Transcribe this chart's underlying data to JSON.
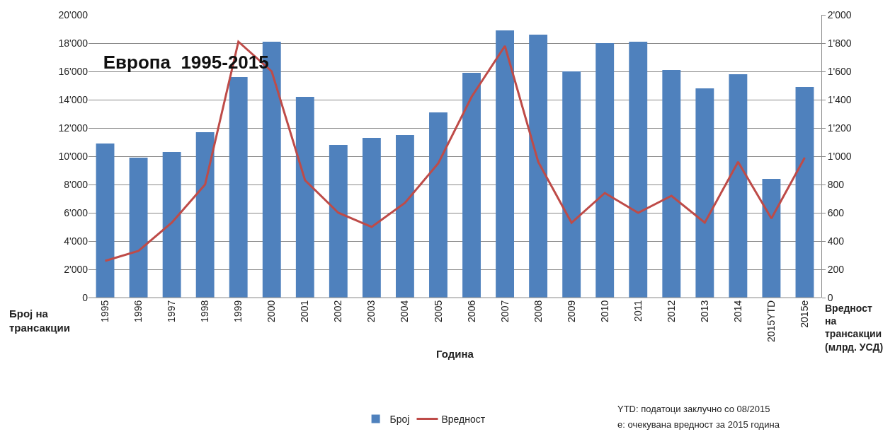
{
  "chart_data": {
    "type": "bar",
    "title": "Европа  1995-2015",
    "xlabel": "Година",
    "ylabel": "Број на трансакции",
    "y2label": "Вредност на трансакции (млрд. УСД)",
    "categories": [
      "1995",
      "1996",
      "1997",
      "1998",
      "1999",
      "2000",
      "2001",
      "2002",
      "2003",
      "2004",
      "2005",
      "2006",
      "2007",
      "2008",
      "2009",
      "2010",
      "2011",
      "2012",
      "2013",
      "2014",
      "2015YTD",
      "2015e"
    ],
    "series": [
      {
        "name": "Број",
        "color": "#4f81bd",
        "values": [
          10900,
          9900,
          10300,
          11700,
          15600,
          18100,
          14200,
          10800,
          11300,
          11500,
          13100,
          15900,
          18900,
          18600,
          16000,
          18000,
          18100,
          16100,
          14800,
          15800,
          8400,
          14900
        ]
      },
      {
        "name": "Вредност",
        "type": "line",
        "axis": "y2",
        "color": "#be4b48",
        "values": [
          260,
          330,
          530,
          800,
          1810,
          1600,
          830,
          600,
          500,
          670,
          950,
          1420,
          1780,
          960,
          530,
          740,
          600,
          720,
          530,
          960,
          560,
          990
        ]
      }
    ],
    "ylim": [
      0,
      20000
    ],
    "yticks": [
      0,
      {
        "value": 2000,
        "label": "2'000"
      },
      {
        "value": 4000,
        "label": "4'000"
      },
      {
        "value": 6000,
        "label": "6'000"
      },
      {
        "value": 8000,
        "label": "8'000"
      },
      {
        "value": 10000,
        "label": "10'000"
      },
      {
        "value": 12000,
        "label": "12'000"
      },
      {
        "value": 14000,
        "label": "14'000"
      },
      {
        "value": 16000,
        "label": "16'000"
      },
      {
        "value": 18000,
        "label": "18'000"
      },
      {
        "value": 20000,
        "label": "20'000"
      }
    ],
    "y2lim": [
      0,
      2000
    ],
    "y2ticks": [
      0,
      200,
      400,
      600,
      800,
      {
        "value": 1000,
        "label": "1'000"
      },
      {
        "value": 1200,
        "label": "1'200"
      },
      {
        "value": 1400,
        "label": "1'400"
      },
      {
        "value": 1600,
        "label": "1'600"
      },
      {
        "value": 1800,
        "label": "1'800"
      },
      {
        "value": 2000,
        "label": "2'000"
      }
    ],
    "grid": "y",
    "legend": "bottom",
    "marker": "none",
    "line_style": "solid",
    "annotations": [
      "YTD: податоци заклучно со 08/2015",
      "e: очекувана вредност за 2015 година"
    ]
  }
}
